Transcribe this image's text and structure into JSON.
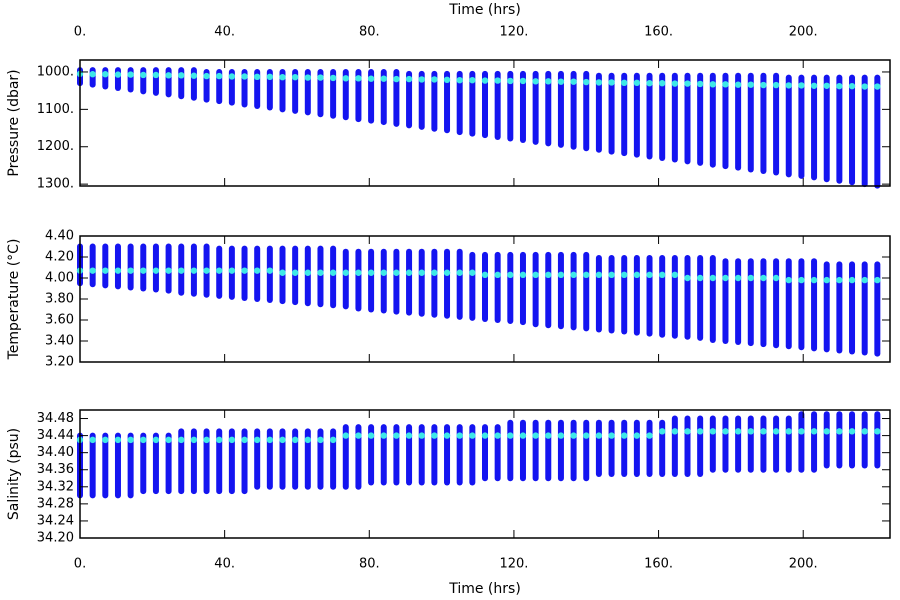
{
  "chart_data": {
    "type": "profiles",
    "xlabel": "Time (hrs)",
    "xlim": [
      0,
      224
    ],
    "xticks": [
      {
        "value": 0,
        "label": "0."
      },
      {
        "value": 40,
        "label": "40."
      },
      {
        "value": 80,
        "label": "80."
      },
      {
        "value": 120,
        "label": "120."
      },
      {
        "value": 160,
        "label": "160."
      },
      {
        "value": 200,
        "label": "200."
      }
    ],
    "x": [
      0,
      3.5,
      7,
      10.5,
      14,
      17.5,
      21,
      24.5,
      28,
      31.5,
      35,
      38.5,
      42,
      45.5,
      49,
      52.5,
      56,
      59.5,
      63,
      66.5,
      70,
      73.5,
      77,
      80.5,
      84,
      87.5,
      91,
      94.5,
      98,
      101.5,
      105,
      108.5,
      112,
      115.5,
      119,
      122.5,
      126,
      129.5,
      133,
      136.5,
      140,
      143.5,
      147,
      150.5,
      154,
      157.5,
      161,
      164.5,
      168,
      171.5,
      175,
      178.5,
      182,
      185.5,
      189,
      192.5,
      196,
      199.5,
      203,
      206.5,
      210,
      213.5,
      217,
      220.5
    ],
    "bar_color": "#1414f0",
    "marker_color": "#3ee8e8",
    "panels": [
      {
        "ylabel": "Pressure (dbar)",
        "reverse_y": true,
        "ylim": [
          968,
          1305
        ],
        "yticks": [
          {
            "value": 1000,
            "label": "1000."
          },
          {
            "value": 1100,
            "label": "1100."
          },
          {
            "value": 1200,
            "label": "1200."
          },
          {
            "value": 1300,
            "label": "1300."
          }
        ],
        "top": [
          995,
          995,
          995,
          995,
          995,
          995,
          995,
          995,
          995,
          995,
          1000,
          1000,
          1000,
          1000,
          1000,
          1000,
          1000,
          1000,
          1000,
          1000,
          1000,
          1000,
          1000,
          1000,
          1000,
          1000,
          1005,
          1005,
          1005,
          1005,
          1005,
          1005,
          1005,
          1005,
          1005,
          1005,
          1005,
          1005,
          1005,
          1005,
          1005,
          1010,
          1010,
          1010,
          1010,
          1010,
          1010,
          1010,
          1010,
          1010,
          1010,
          1010,
          1010,
          1010,
          1010,
          1010,
          1015,
          1015,
          1015,
          1015,
          1015,
          1015,
          1015,
          1015
        ],
        "bottom": [
          1030,
          1034,
          1039,
          1043,
          1047,
          1052,
          1056,
          1060,
          1065,
          1069,
          1074,
          1078,
          1082,
          1087,
          1091,
          1095,
          1100,
          1104,
          1108,
          1113,
          1117,
          1121,
          1126,
          1130,
          1134,
          1139,
          1143,
          1147,
          1152,
          1156,
          1161,
          1165,
          1169,
          1174,
          1178,
          1182,
          1187,
          1191,
          1195,
          1200,
          1204,
          1208,
          1213,
          1217,
          1221,
          1226,
          1230,
          1234,
          1239,
          1243,
          1248,
          1252,
          1256,
          1261,
          1265,
          1269,
          1274,
          1278,
          1282,
          1287,
          1291,
          1295,
          1300,
          1304
        ],
        "marker": [
          1005,
          1006,
          1006,
          1007,
          1007,
          1008,
          1008,
          1009,
          1009,
          1010,
          1011,
          1011,
          1012,
          1012,
          1013,
          1013,
          1014,
          1014,
          1015,
          1015,
          1016,
          1017,
          1017,
          1018,
          1018,
          1019,
          1019,
          1020,
          1020,
          1021,
          1022,
          1022,
          1023,
          1023,
          1024,
          1024,
          1025,
          1025,
          1026,
          1026,
          1027,
          1028,
          1028,
          1029,
          1029,
          1030,
          1030,
          1031,
          1031,
          1032,
          1033,
          1033,
          1034,
          1034,
          1035,
          1035,
          1036,
          1036,
          1037,
          1037,
          1038,
          1038,
          1039,
          1039
        ]
      },
      {
        "ylabel": "Temperature (°C)",
        "reverse_y": false,
        "ylim": [
          3.2,
          4.4
        ],
        "yticks": [
          {
            "value": 3.2,
            "label": "3.20"
          },
          {
            "value": 3.4,
            "label": "3.40"
          },
          {
            "value": 3.6,
            "label": "3.60"
          },
          {
            "value": 3.8,
            "label": "3.80"
          },
          {
            "value": 4.0,
            "label": "4.00"
          },
          {
            "value": 4.2,
            "label": "4.20"
          },
          {
            "value": 4.4,
            "label": "4.40"
          }
        ],
        "top": [
          4.3,
          4.3,
          4.3,
          4.3,
          4.3,
          4.3,
          4.3,
          4.3,
          4.3,
          4.3,
          4.3,
          4.28,
          4.28,
          4.28,
          4.28,
          4.28,
          4.28,
          4.28,
          4.28,
          4.28,
          4.28,
          4.25,
          4.25,
          4.25,
          4.25,
          4.25,
          4.25,
          4.25,
          4.25,
          4.25,
          4.25,
          4.22,
          4.22,
          4.22,
          4.22,
          4.22,
          4.22,
          4.22,
          4.22,
          4.22,
          4.22,
          4.19,
          4.19,
          4.19,
          4.19,
          4.19,
          4.19,
          4.19,
          4.19,
          4.19,
          4.19,
          4.16,
          4.16,
          4.16,
          4.16,
          4.16,
          4.16,
          4.16,
          4.16,
          4.13,
          4.13,
          4.13,
          4.13,
          4.13
        ],
        "bottom": [
          3.95,
          3.94,
          3.93,
          3.92,
          3.91,
          3.9,
          3.89,
          3.88,
          3.86,
          3.85,
          3.84,
          3.83,
          3.82,
          3.81,
          3.8,
          3.79,
          3.78,
          3.77,
          3.76,
          3.75,
          3.74,
          3.73,
          3.71,
          3.7,
          3.69,
          3.68,
          3.67,
          3.66,
          3.65,
          3.64,
          3.63,
          3.62,
          3.61,
          3.6,
          3.59,
          3.58,
          3.56,
          3.55,
          3.54,
          3.53,
          3.52,
          3.51,
          3.5,
          3.49,
          3.48,
          3.47,
          3.46,
          3.45,
          3.44,
          3.43,
          3.41,
          3.4,
          3.39,
          3.38,
          3.37,
          3.36,
          3.35,
          3.34,
          3.33,
          3.32,
          3.31,
          3.3,
          3.29,
          3.28
        ],
        "marker": [
          4.07,
          4.07,
          4.07,
          4.07,
          4.07,
          4.07,
          4.07,
          4.07,
          4.07,
          4.07,
          4.07,
          4.07,
          4.07,
          4.07,
          4.07,
          4.07,
          4.05,
          4.05,
          4.05,
          4.05,
          4.05,
          4.05,
          4.05,
          4.05,
          4.05,
          4.05,
          4.05,
          4.05,
          4.05,
          4.05,
          4.05,
          4.05,
          4.03,
          4.03,
          4.03,
          4.03,
          4.03,
          4.03,
          4.03,
          4.03,
          4.03,
          4.03,
          4.03,
          4.03,
          4.03,
          4.03,
          4.03,
          4.03,
          4.0,
          4.0,
          4.0,
          4.0,
          4.0,
          4.0,
          4.0,
          4.0,
          3.98,
          3.98,
          3.98,
          3.98,
          3.98,
          3.98,
          3.98,
          3.98
        ]
      },
      {
        "ylabel": "Salinity (psu)",
        "reverse_y": false,
        "ylim": [
          34.2,
          34.5
        ],
        "yticks": [
          {
            "value": 34.2,
            "label": "34.20"
          },
          34.24,
          34.28,
          34.32,
          {
            "value": 34.36,
            "label": "34.36"
          },
          {
            "value": 34.4,
            "label": "34.40"
          },
          34.44,
          34.48
        ],
        "top": [
          34.44,
          34.44,
          34.44,
          34.44,
          34.44,
          34.44,
          34.44,
          34.44,
          34.45,
          34.45,
          34.45,
          34.45,
          34.45,
          34.45,
          34.45,
          34.45,
          34.45,
          34.45,
          34.45,
          34.45,
          34.45,
          34.46,
          34.46,
          34.46,
          34.46,
          34.46,
          34.46,
          34.46,
          34.46,
          34.46,
          34.46,
          34.46,
          34.46,
          34.46,
          34.47,
          34.47,
          34.47,
          34.47,
          34.47,
          34.47,
          34.47,
          34.47,
          34.47,
          34.47,
          34.47,
          34.47,
          34.47,
          34.48,
          34.48,
          34.48,
          34.48,
          34.48,
          34.48,
          34.48,
          34.48,
          34.48,
          34.48,
          34.49,
          34.49,
          34.49,
          34.49,
          34.49,
          34.49,
          34.49
        ],
        "bottom": [
          34.3,
          34.3,
          34.3,
          34.3,
          34.3,
          34.31,
          34.31,
          34.31,
          34.31,
          34.31,
          34.31,
          34.31,
          34.31,
          34.31,
          34.32,
          34.32,
          34.32,
          34.32,
          34.32,
          34.32,
          34.32,
          34.32,
          34.32,
          34.33,
          34.33,
          34.33,
          34.33,
          34.33,
          34.33,
          34.33,
          34.33,
          34.33,
          34.34,
          34.34,
          34.34,
          34.34,
          34.34,
          34.34,
          34.34,
          34.34,
          34.34,
          34.35,
          34.35,
          34.35,
          34.35,
          34.35,
          34.35,
          34.35,
          34.35,
          34.35,
          34.36,
          34.36,
          34.36,
          34.36,
          34.36,
          34.36,
          34.36,
          34.36,
          34.36,
          34.37,
          34.37,
          34.37,
          34.37,
          34.37
        ],
        "marker": [
          34.43,
          34.43,
          34.43,
          34.43,
          34.43,
          34.43,
          34.43,
          34.43,
          34.43,
          34.43,
          34.43,
          34.43,
          34.43,
          34.43,
          34.43,
          34.43,
          34.43,
          34.43,
          34.43,
          34.43,
          34.43,
          34.44,
          34.44,
          34.44,
          34.44,
          34.44,
          34.44,
          34.44,
          34.44,
          34.44,
          34.44,
          34.44,
          34.44,
          34.44,
          34.44,
          34.44,
          34.44,
          34.44,
          34.44,
          34.44,
          34.44,
          34.44,
          34.44,
          34.44,
          34.44,
          34.44,
          34.45,
          34.45,
          34.45,
          34.45,
          34.45,
          34.45,
          34.45,
          34.45,
          34.45,
          34.45,
          34.45,
          34.45,
          34.45,
          34.45,
          34.45,
          34.45,
          34.45,
          34.45
        ]
      }
    ]
  }
}
